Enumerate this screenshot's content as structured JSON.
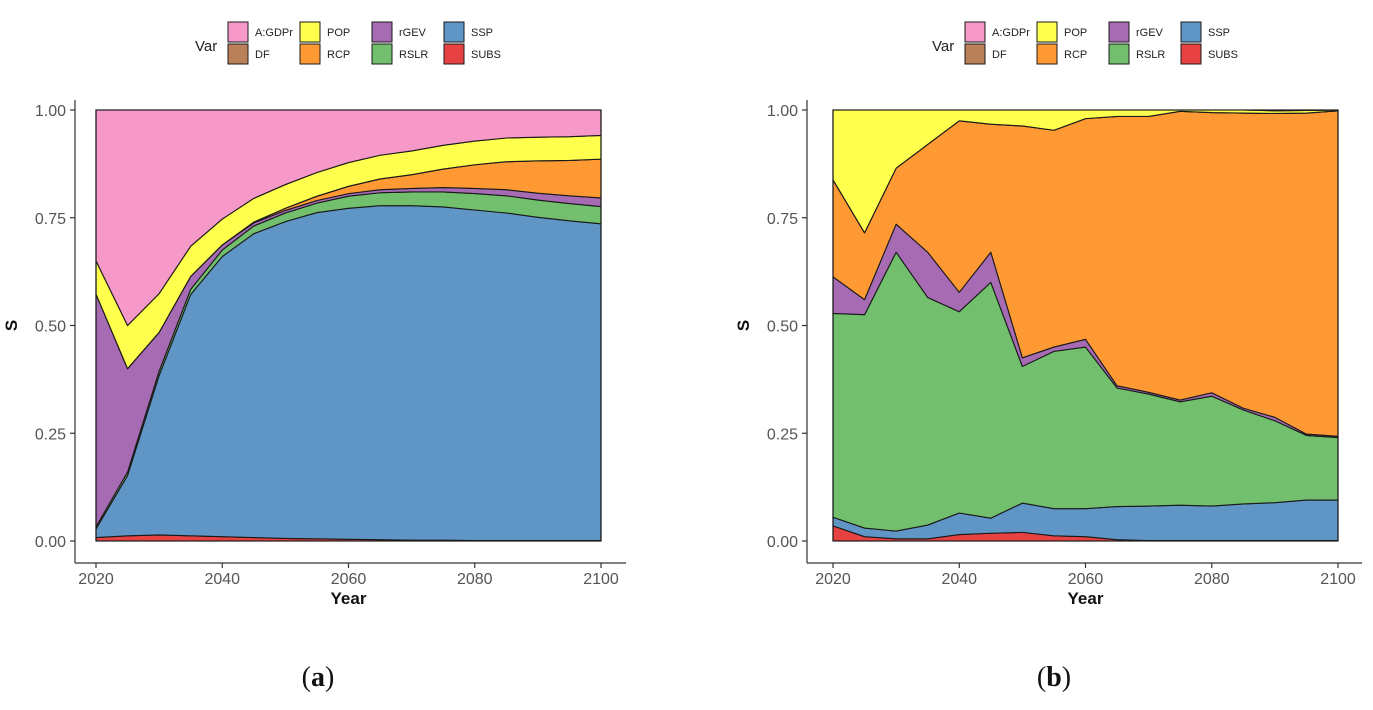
{
  "legend": {
    "title": "Var",
    "items": [
      {
        "key": "A:GDPr",
        "color": "#F799C8"
      },
      {
        "key": "DF",
        "color": "#B9805A"
      },
      {
        "key": "POP",
        "color": "#FFFF4D"
      },
      {
        "key": "RCP",
        "color": "#FF9933"
      },
      {
        "key": "rGEV",
        "color": "#A76BB3"
      },
      {
        "key": "RSLR",
        "color": "#72BF6E"
      },
      {
        "key": "SSP",
        "color": "#5F96C6"
      },
      {
        "key": "SUBS",
        "color": "#E84142"
      }
    ]
  },
  "chart_data": [
    {
      "type": "area",
      "panel": "a",
      "caption": "a",
      "xlabel": "Year",
      "ylabel": "S",
      "xlim": [
        2020,
        2100
      ],
      "ylim": [
        0,
        1
      ],
      "xticks": [
        "2020",
        "2040",
        "2060",
        "2080",
        "2100"
      ],
      "yticks": [
        "0.00",
        "0.25",
        "0.50",
        "0.75",
        "1.00"
      ],
      "x": [
        2020,
        2025,
        2030,
        2035,
        2040,
        2045,
        2050,
        2055,
        2060,
        2065,
        2070,
        2075,
        2080,
        2085,
        2090,
        2095,
        2100
      ],
      "series": [
        {
          "name": "SUBS",
          "values": [
            0.008,
            0.012,
            0.014,
            0.012,
            0.01,
            0.008,
            0.006,
            0.005,
            0.004,
            0.003,
            0.002,
            0.002,
            0.001,
            0.001,
            0.001,
            0.001,
            0.001
          ]
        },
        {
          "name": "SSP",
          "values": [
            0.02,
            0.14,
            0.37,
            0.56,
            0.65,
            0.705,
            0.735,
            0.757,
            0.768,
            0.775,
            0.776,
            0.773,
            0.767,
            0.76,
            0.75,
            0.742,
            0.735
          ]
        },
        {
          "name": "RSLR",
          "values": [
            0.005,
            0.008,
            0.01,
            0.012,
            0.015,
            0.018,
            0.02,
            0.022,
            0.028,
            0.03,
            0.032,
            0.035,
            0.038,
            0.04,
            0.04,
            0.04,
            0.04
          ]
        },
        {
          "name": "rGEV",
          "values": [
            0.54,
            0.24,
            0.09,
            0.03,
            0.012,
            0.007,
            0.006,
            0.006,
            0.006,
            0.007,
            0.008,
            0.01,
            0.012,
            0.014,
            0.016,
            0.018,
            0.02
          ]
        },
        {
          "name": "RCP",
          "values": [
            0.0,
            0.0,
            0.0,
            0.0,
            0.0,
            0.002,
            0.005,
            0.01,
            0.017,
            0.025,
            0.032,
            0.043,
            0.055,
            0.065,
            0.075,
            0.082,
            0.09
          ]
        },
        {
          "name": "DF",
          "values": [
            0.0,
            0.0,
            0.0,
            0.0,
            0.0,
            0.0,
            0.0,
            0.0,
            0.0,
            0.0,
            0.0,
            0.0,
            0.0,
            0.0,
            0.0,
            0.0,
            0.0
          ]
        },
        {
          "name": "POP",
          "values": [
            0.077,
            0.1,
            0.09,
            0.07,
            0.06,
            0.055,
            0.055,
            0.055,
            0.055,
            0.055,
            0.055,
            0.055,
            0.055,
            0.055,
            0.055,
            0.055,
            0.055
          ]
        },
        {
          "name": "A:GDPr",
          "values": [
            0.35,
            0.5,
            0.426,
            0.316,
            0.253,
            0.205,
            0.173,
            0.145,
            0.122,
            0.105,
            0.095,
            0.082,
            0.072,
            0.065,
            0.063,
            0.062,
            0.059
          ]
        }
      ]
    },
    {
      "type": "area",
      "panel": "b",
      "caption": "b",
      "xlabel": "Year",
      "ylabel": "S",
      "xlim": [
        2020,
        2100
      ],
      "ylim": [
        0,
        1
      ],
      "xticks": [
        "2020",
        "2040",
        "2060",
        "2080",
        "2100"
      ],
      "yticks": [
        "0.00",
        "0.25",
        "0.50",
        "0.75",
        "1.00"
      ],
      "x": [
        2020,
        2025,
        2030,
        2035,
        2040,
        2045,
        2050,
        2055,
        2060,
        2065,
        2070,
        2075,
        2080,
        2085,
        2090,
        2095,
        2100
      ],
      "series": [
        {
          "name": "SUBS",
          "values": [
            0.035,
            0.01,
            0.005,
            0.005,
            0.015,
            0.018,
            0.02,
            0.012,
            0.01,
            0.003,
            0.001,
            0.001,
            0.001,
            0.001,
            0.001,
            0.001,
            0.001
          ]
        },
        {
          "name": "SSP",
          "values": [
            0.02,
            0.02,
            0.018,
            0.032,
            0.05,
            0.035,
            0.068,
            0.063,
            0.065,
            0.077,
            0.08,
            0.082,
            0.08,
            0.085,
            0.088,
            0.094,
            0.094
          ]
        },
        {
          "name": "RSLR",
          "values": [
            0.473,
            0.495,
            0.647,
            0.528,
            0.467,
            0.547,
            0.317,
            0.365,
            0.375,
            0.275,
            0.26,
            0.24,
            0.255,
            0.218,
            0.19,
            0.15,
            0.145
          ]
        },
        {
          "name": "rGEV",
          "values": [
            0.085,
            0.035,
            0.065,
            0.105,
            0.045,
            0.07,
            0.02,
            0.01,
            0.018,
            0.005,
            0.004,
            0.004,
            0.008,
            0.004,
            0.008,
            0.003,
            0.003
          ]
        },
        {
          "name": "RCP",
          "values": [
            0.225,
            0.155,
            0.13,
            0.25,
            0.398,
            0.297,
            0.538,
            0.503,
            0.512,
            0.625,
            0.64,
            0.67,
            0.65,
            0.685,
            0.705,
            0.745,
            0.755
          ]
        },
        {
          "name": "DF",
          "values": [
            0.0,
            0.0,
            0.0,
            0.0,
            0.0,
            0.0,
            0.0,
            0.0,
            0.0,
            0.0,
            0.0,
            0.0,
            0.0,
            0.0,
            0.0,
            0.0,
            0.0
          ]
        },
        {
          "name": "POP",
          "values": [
            0.162,
            0.285,
            0.135,
            0.08,
            0.025,
            0.033,
            0.037,
            0.047,
            0.02,
            0.015,
            0.015,
            0.003,
            0.006,
            0.007,
            0.006,
            0.006,
            0.002
          ]
        },
        {
          "name": "A:GDPr",
          "values": [
            0.0,
            0.0,
            0.0,
            0.0,
            0.0,
            0.0,
            0.0,
            0.0,
            0.0,
            0.0,
            0.0,
            0.0,
            0.0,
            0.0,
            0.0,
            0.0,
            0.0
          ]
        }
      ]
    }
  ]
}
